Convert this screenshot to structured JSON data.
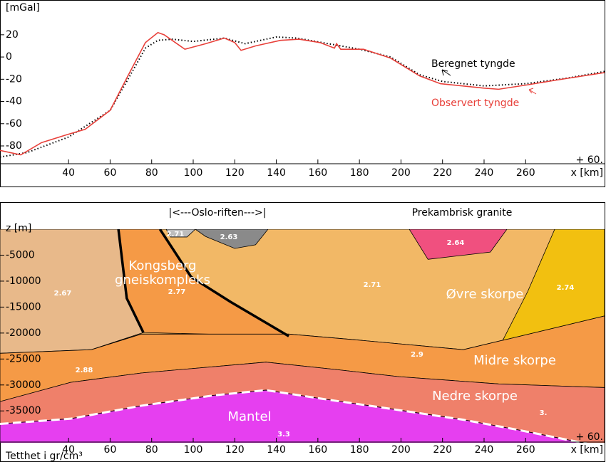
{
  "chart_data": [
    {
      "type": "line",
      "y_label": "[mGal]",
      "x_label": "x [km]",
      "corner_note": "+ 60.",
      "xlim": [
        7,
        298
      ],
      "xticks": [
        40,
        60,
        80,
        100,
        120,
        140,
        160,
        180,
        200,
        220,
        240,
        260
      ],
      "ylim": [
        -96,
        50
      ],
      "yticks": [
        20,
        0,
        -20,
        -40,
        -60,
        -80
      ],
      "series": [
        {
          "name": "Beregnet tyngde",
          "color": "#000000",
          "style": "dotted",
          "x": [
            7,
            20,
            40,
            60,
            68,
            77,
            83,
            90,
            100,
            115,
            125,
            140,
            150,
            165,
            180,
            195,
            209,
            220,
            240,
            260,
            280,
            298
          ],
          "values": [
            -90,
            -86,
            -72,
            -48,
            -22,
            8,
            15,
            16,
            14,
            17,
            12,
            18,
            17,
            12,
            7,
            0,
            -16,
            -22,
            -26,
            -24,
            -19,
            -13
          ]
        },
        {
          "name": "Observert tyngde",
          "color": "#e8403a",
          "style": "solid",
          "x": [
            7,
            17,
            27,
            39,
            48,
            60,
            68,
            77,
            83,
            86,
            96,
            106,
            115,
            120,
            123,
            130,
            142,
            151,
            161,
            168,
            169,
            171,
            182,
            195,
            209,
            219,
            240,
            247,
            261,
            274,
            298
          ],
          "values": [
            -84,
            -88,
            -77,
            -70,
            -65,
            -48,
            -19,
            13,
            22,
            20,
            7,
            12,
            17,
            13,
            6,
            10,
            15,
            16,
            13,
            8,
            12,
            7,
            7,
            -1,
            -17,
            -24,
            -28,
            -29,
            -25,
            -21,
            -14
          ]
        }
      ]
    },
    {
      "type": "cross-section",
      "y_label": "z [m]",
      "x_label": "x [km]",
      "corner_note": "+ 60.",
      "density_note": "Tetthet i gr/cm³",
      "xlim": [
        7,
        298
      ],
      "xticks": [
        40,
        60,
        80,
        100,
        120,
        140,
        160,
        180,
        200,
        220,
        240,
        260
      ],
      "ylim": [
        -41000,
        0
      ],
      "yticks": [
        -5000,
        -10000,
        -15000,
        -20000,
        -25000,
        -30000,
        -35000
      ],
      "annotations": [
        "Kongsberg",
        "gneiskompleks",
        "Øvre skorpe",
        "Midre skorpe",
        "Nedre skorpe",
        "Mantel",
        "|<---Oslo-riften--->|",
        "Prekambrisk granite"
      ],
      "layers": [
        {
          "labels": [
            "2.71"
          ],
          "color": "#f2b866",
          "x": [
            7,
            298,
            298,
            230,
            178,
            146,
            75,
            51,
            7
          ],
          "z": [
            0,
            0,
            -16700,
            -23200,
            -21300,
            -20200,
            -20200,
            -23200,
            -23900
          ]
        },
        {
          "labels": [
            "2.67"
          ],
          "color": "#e8b98a",
          "x": [
            7,
            64,
            68,
            76,
            51,
            7
          ],
          "z": [
            0,
            0,
            -13300,
            -19900,
            -23200,
            -23900
          ]
        },
        {
          "labels": [
            "2.77"
          ],
          "color": "#f59a46",
          "x": [
            64,
            84,
            99,
            118,
            146,
            76,
            68
          ],
          "z": [
            0,
            0,
            -9200,
            -14000,
            -20600,
            -19900,
            -13300
          ]
        },
        {
          "labels": [
            "2.88",
            "2.9"
          ],
          "color": "#f59a46",
          "x": [
            7,
            51,
            75,
            146,
            178,
            230,
            298,
            298,
            247,
            199,
            168,
            135,
            75,
            41,
            7
          ],
          "z": [
            -23900,
            -23200,
            -20200,
            -20200,
            -21300,
            -23200,
            -16700,
            -30500,
            -29800,
            -28400,
            -27000,
            -25600,
            -27700,
            -29500,
            -33200
          ]
        },
        {
          "labels": [
            "3."
          ],
          "color": "#ef806a",
          "x": [
            7,
            41,
            75,
            135,
            168,
            199,
            247,
            298,
            298,
            257,
            230,
            195,
            161,
            135,
            110,
            75,
            41,
            7
          ],
          "z": [
            -33200,
            -29500,
            -27700,
            -25600,
            -27000,
            -28400,
            -29800,
            -30500,
            -42000,
            -38700,
            -36700,
            -34600,
            -32600,
            -31000,
            -32000,
            -34000,
            -36500,
            -37500
          ]
        },
        {
          "labels": [
            "3.3"
          ],
          "color": "#e63ff0",
          "x": [
            7,
            41,
            75,
            110,
            135,
            161,
            195,
            230,
            257,
            298,
            298,
            7
          ],
          "z": [
            -37500,
            -36500,
            -34000,
            -32000,
            -31000,
            -32600,
            -34600,
            -36700,
            -38700,
            -42000,
            -42000,
            -42000
          ]
        },
        {
          "labels": [
            "2.74"
          ],
          "color": "#f2c010",
          "x": [
            274,
            298,
            298,
            249,
            261
          ],
          "z": [
            0,
            0,
            -16700,
            -21400,
            -12000
          ]
        },
        {
          "labels": [
            "2.64"
          ],
          "color": "#f0507f",
          "x": [
            204,
            251,
            243,
            213
          ],
          "z": [
            0,
            0,
            -4400,
            -5800
          ]
        },
        {
          "labels": [
            "2.63"
          ],
          "color": "#8a8a8a",
          "x": [
            101,
            136,
            130,
            120,
            106
          ],
          "z": [
            0,
            0,
            -3000,
            -3700,
            -1400
          ]
        },
        {
          "labels": [
            "2.71"
          ],
          "color": "#bdbdbd",
          "x": [
            87,
            101,
            97,
            89
          ],
          "z": [
            0,
            0,
            -1500,
            -1500
          ]
        }
      ],
      "moho": {
        "x": [
          7,
          41,
          75,
          110,
          135,
          161,
          195,
          230,
          257,
          298
        ],
        "z": [
          -37500,
          -36500,
          -34000,
          -32000,
          -31000,
          -32600,
          -34600,
          -36700,
          -38700,
          -42000
        ]
      },
      "faults": [
        {
          "x": [
            64,
            68,
            76
          ],
          "z": [
            0,
            -13300,
            -19900
          ]
        },
        {
          "x": [
            84,
            99,
            118,
            146
          ],
          "z": [
            0,
            -9200,
            -14000,
            -20600
          ]
        }
      ]
    }
  ]
}
